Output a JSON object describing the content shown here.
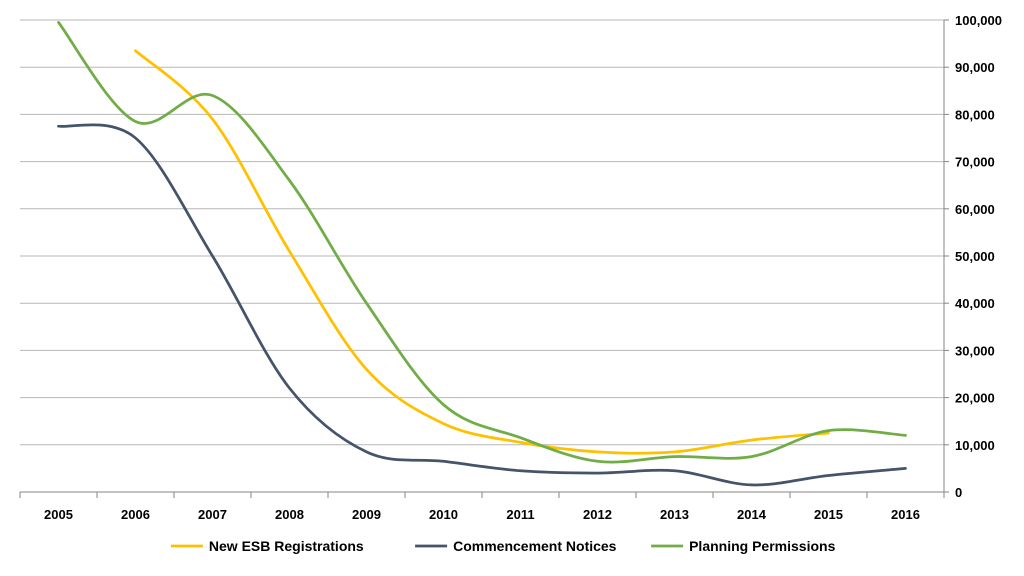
{
  "chart_data": {
    "type": "line",
    "x": [
      "2005",
      "2006",
      "2007",
      "2008",
      "2009",
      "2010",
      "2011",
      "2012",
      "2013",
      "2014",
      "2015",
      "2016"
    ],
    "ylim": [
      0,
      100000
    ],
    "yticks": [
      0,
      10000,
      20000,
      30000,
      40000,
      50000,
      60000,
      70000,
      80000,
      90000,
      100000
    ],
    "ytick_labels": [
      "0",
      "10,000",
      "20,000",
      "30,000",
      "40,000",
      "50,000",
      "60,000",
      "70,000",
      "80,000",
      "90,000",
      "100,000"
    ],
    "y_axis_side": "right",
    "grid": true,
    "legend_position": "bottom",
    "series": [
      {
        "name": "New ESB Registrations",
        "color": "#FFC000",
        "values": [
          null,
          93500,
          79000,
          51000,
          26000,
          14500,
          10500,
          8500,
          8500,
          11000,
          12500,
          null
        ]
      },
      {
        "name": "Commencement Notices",
        "color": "#44546A",
        "values": [
          77500,
          75000,
          50000,
          22000,
          8500,
          6500,
          4500,
          4000,
          4500,
          1500,
          3500,
          5000
        ]
      },
      {
        "name": "Planning Permissions",
        "color": "#70AD47",
        "values": [
          99500,
          78500,
          84000,
          66000,
          40000,
          18500,
          11500,
          6500,
          7500,
          7500,
          13000,
          12000
        ]
      }
    ]
  }
}
